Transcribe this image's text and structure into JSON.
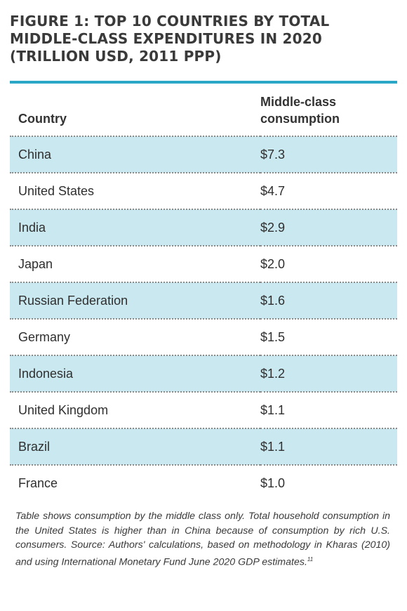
{
  "title": "FIGURE 1: TOP 10 COUNTRIES BY TOTAL MIDDLE-CLASS EXPENDITURES IN 2020 (TRILLION USD, 2011 PPP)",
  "header": {
    "country": "Country",
    "consumption": "Middle-class consumption"
  },
  "note": "Table shows consumption by the middle class only. Total household consumption in the United States is higher than in China because of consumption by rich U.S. consumers. Source: Authors' calculations, based on methodology in Kharas (2010) and using International Monetary Fund June 2020 GDP estimates.",
  "note_ref": "11",
  "colors": {
    "accent": "#2aa7c6",
    "row_shade": "#c9e8f0"
  },
  "chart_data": {
    "type": "table",
    "columns": [
      "Country",
      "Middle-class consumption"
    ],
    "rows": [
      {
        "country": "China",
        "value": "$7.3"
      },
      {
        "country": "United States",
        "value": "$4.7"
      },
      {
        "country": "India",
        "value": "$2.9"
      },
      {
        "country": "Japan",
        "value": "$2.0"
      },
      {
        "country": "Russian Federation",
        "value": "$1.6"
      },
      {
        "country": "Germany",
        "value": "$1.5"
      },
      {
        "country": "Indonesia",
        "value": "$1.2"
      },
      {
        "country": "United Kingdom",
        "value": "$1.1"
      },
      {
        "country": "Brazil",
        "value": "$1.1"
      },
      {
        "country": "France",
        "value": "$1.0"
      }
    ]
  }
}
